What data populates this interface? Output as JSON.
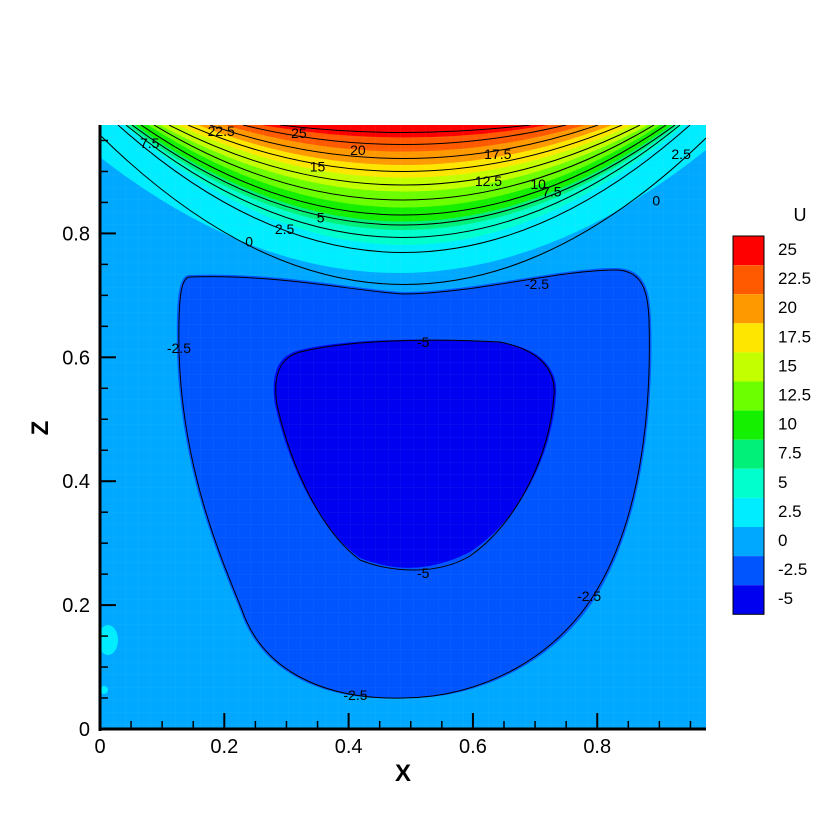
{
  "chart_data": {
    "type": "heatmap",
    "title": "",
    "xlabel": "X",
    "ylabel": "Z",
    "xlim": [
      0,
      0.975
    ],
    "ylim": [
      0,
      0.975
    ],
    "x_ticks": [
      0,
      0.2,
      0.4,
      0.6,
      0.8
    ],
    "x_tick_labels": [
      "0",
      "0.2",
      "0.4",
      "0.6",
      "0.8"
    ],
    "y_ticks": [
      0,
      0.2,
      0.4,
      0.6,
      0.8
    ],
    "y_tick_labels": [
      "0",
      "0.2",
      "0.4",
      "0.6",
      "0.8"
    ],
    "legend": {
      "title": "U",
      "placement": "right",
      "levels": [
        {
          "value": 25,
          "label": "25",
          "color": "#ff0000"
        },
        {
          "value": 22.5,
          "label": "22.5",
          "color": "#ff5a00"
        },
        {
          "value": 20,
          "label": "20",
          "color": "#ff9900"
        },
        {
          "value": 17.5,
          "label": "17.5",
          "color": "#ffe600"
        },
        {
          "value": 15,
          "label": "15",
          "color": "#c4ff00"
        },
        {
          "value": 12.5,
          "label": "12.5",
          "color": "#6cff00"
        },
        {
          "value": 10,
          "label": "10",
          "color": "#14f000"
        },
        {
          "value": 7.5,
          "label": "7.5",
          "color": "#00f07a"
        },
        {
          "value": 5,
          "label": "5",
          "color": "#00ffcc"
        },
        {
          "value": 2.5,
          "label": "2.5",
          "color": "#00ecff"
        },
        {
          "value": 0,
          "label": "0",
          "color": "#00a8ff"
        },
        {
          "value": -2.5,
          "label": "-2.5",
          "color": "#0055ff"
        },
        {
          "value": -5,
          "label": "-5",
          "color": "#0000f0"
        }
      ]
    },
    "contour_labels": [
      {
        "text": "25",
        "x": 0.32,
        "z": 0.962
      },
      {
        "text": "22.5",
        "x": 0.195,
        "z": 0.965
      },
      {
        "text": "20",
        "x": 0.415,
        "z": 0.935
      },
      {
        "text": "17.5",
        "x": 0.64,
        "z": 0.928
      },
      {
        "text": "15",
        "x": 0.35,
        "z": 0.908
      },
      {
        "text": "12.5",
        "x": 0.625,
        "z": 0.885
      },
      {
        "text": "10",
        "x": 0.705,
        "z": 0.88
      },
      {
        "text": "7.5",
        "x": 0.08,
        "z": 0.946
      },
      {
        "text": "7.5",
        "x": 0.727,
        "z": 0.868
      },
      {
        "text": "5",
        "x": 0.355,
        "z": 0.826
      },
      {
        "text": "2.5",
        "x": 0.297,
        "z": 0.807
      },
      {
        "text": "2.5",
        "x": 0.935,
        "z": 0.928
      },
      {
        "text": "0",
        "x": 0.24,
        "z": 0.787
      },
      {
        "text": "0",
        "x": 0.895,
        "z": 0.853
      },
      {
        "text": "-2.5",
        "x": 0.703,
        "z": 0.718
      },
      {
        "text": "-2.5",
        "x": 0.127,
        "z": 0.615
      },
      {
        "text": "-2.5",
        "x": 0.787,
        "z": 0.215
      },
      {
        "text": "-2.5",
        "x": 0.411,
        "z": 0.055
      },
      {
        "text": "-5",
        "x": 0.52,
        "z": 0.625
      },
      {
        "text": "-5",
        "x": 0.52,
        "z": 0.252
      }
    ]
  }
}
